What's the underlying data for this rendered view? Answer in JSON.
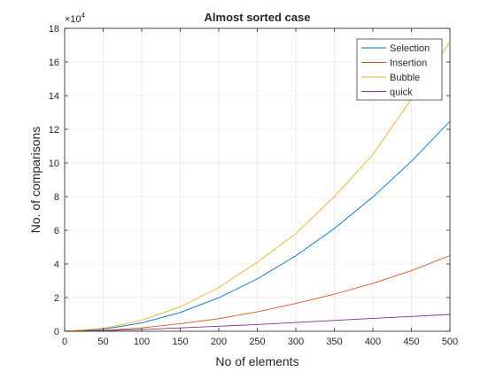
{
  "chart_data": {
    "type": "line",
    "title": "Almost sorted case",
    "xlabel": "No of elements",
    "ylabel": "No. of comparisons",
    "y_exponent_label": "×10",
    "y_exponent_power": "4",
    "xlim": [
      0,
      500
    ],
    "ylim": [
      0,
      180000
    ],
    "y_scale_factor": 10000,
    "xticks": [
      0,
      50,
      100,
      150,
      200,
      250,
      300,
      350,
      400,
      450,
      500
    ],
    "yticks": [
      0,
      2,
      4,
      6,
      8,
      10,
      12,
      14,
      16,
      18
    ],
    "grid": true,
    "legend_position": "top-right",
    "series": [
      {
        "name": "Selection",
        "color": "#0072BD",
        "x": [
          0,
          50,
          100,
          150,
          200,
          250,
          300,
          350,
          400,
          450,
          500
        ],
        "y": [
          0,
          1225,
          4950,
          11175,
          19900,
          31125,
          44850,
          61075,
          79800,
          101025,
          124750
        ]
      },
      {
        "name": "Insertion",
        "color": "#D95319",
        "x": [
          0,
          50,
          100,
          150,
          200,
          250,
          300,
          350,
          400,
          450,
          500
        ],
        "y": [
          0,
          500,
          2000,
          4500,
          7500,
          11500,
          16500,
          22000,
          28500,
          36000,
          45000
        ]
      },
      {
        "name": "Bubble",
        "color": "#EDB120",
        "x": [
          0,
          50,
          100,
          150,
          200,
          250,
          300,
          350,
          400,
          450,
          500
        ],
        "y": [
          0,
          1700,
          6500,
          14500,
          26000,
          41000,
          58000,
          80000,
          105000,
          138000,
          172000
        ]
      },
      {
        "name": "quick",
        "color": "#7E2F8E",
        "x": [
          0,
          50,
          100,
          150,
          200,
          250,
          300,
          350,
          400,
          450,
          500
        ],
        "y": [
          0,
          300,
          1000,
          2000,
          3000,
          4000,
          5200,
          6400,
          7700,
          8800,
          10000
        ]
      }
    ]
  }
}
